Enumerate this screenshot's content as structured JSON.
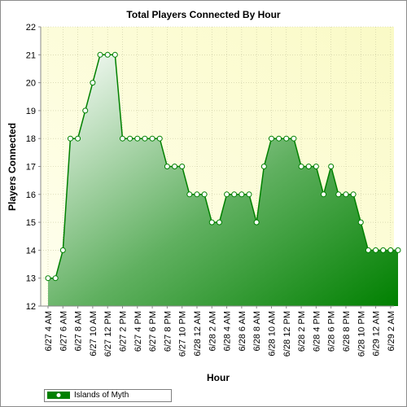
{
  "chart_data": {
    "type": "area",
    "title": "Total Players Connected By Hour",
    "xlabel": "Hour",
    "ylabel": "Players Connected",
    "ylim": [
      12,
      22
    ],
    "yticks": [
      12,
      13,
      14,
      15,
      16,
      17,
      18,
      19,
      20,
      21,
      22
    ],
    "grid": true,
    "legend_position": "bottom-left",
    "x_tick_labels": [
      "6/27 4 AM",
      "6/27 6 AM",
      "6/27 8 AM",
      "6/27 10 AM",
      "6/27 12 PM",
      "6/27 2 PM",
      "6/27 4 PM",
      "6/27 6 PM",
      "6/27 8 PM",
      "6/27 10 PM",
      "6/28 12 AM",
      "6/28 2 AM",
      "6/28 4 AM",
      "6/28 6 AM",
      "6/28 8 AM",
      "6/28 10 AM",
      "6/28 12 PM",
      "6/28 2 PM",
      "6/28 4 PM",
      "6/28 6 PM",
      "6/28 8 PM",
      "6/28 10 PM",
      "6/29 12 AM",
      "6/29 2 AM"
    ],
    "series": [
      {
        "name": "Islands of Myth",
        "color": "#008000",
        "x": [
          "6/27 4 AM",
          "6/27 5 AM",
          "6/27 6 AM",
          "6/27 7 AM",
          "6/27 8 AM",
          "6/27 9 AM",
          "6/27 10 AM",
          "6/27 11 AM",
          "6/27 12 PM",
          "6/27 1 PM",
          "6/27 2 PM",
          "6/27 3 PM",
          "6/27 4 PM",
          "6/27 5 PM",
          "6/27 6 PM",
          "6/27 7 PM",
          "6/27 8 PM",
          "6/27 9 PM",
          "6/27 10 PM",
          "6/27 11 PM",
          "6/28 12 AM",
          "6/28 1 AM",
          "6/28 2 AM",
          "6/28 3 AM",
          "6/28 4 AM",
          "6/28 5 AM",
          "6/28 6 AM",
          "6/28 7 AM",
          "6/28 8 AM",
          "6/28 9 AM",
          "6/28 10 AM",
          "6/28 11 AM",
          "6/28 12 PM",
          "6/28 1 PM",
          "6/28 2 PM",
          "6/28 3 PM",
          "6/28 4 PM",
          "6/28 5 PM",
          "6/28 6 PM",
          "6/28 7 PM",
          "6/28 8 PM",
          "6/28 9 PM",
          "6/28 10 PM",
          "6/28 11 PM",
          "6/29 12 AM",
          "6/29 1 AM",
          "6/29 2 AM",
          "6/29 3 AM"
        ],
        "values": [
          13,
          13,
          14,
          18,
          18,
          19,
          20,
          21,
          21,
          21,
          18,
          18,
          18,
          18,
          18,
          18,
          17,
          17,
          17,
          16,
          16,
          16,
          15,
          15,
          16,
          16,
          16,
          16,
          15,
          17,
          18,
          18,
          18,
          18,
          17,
          17,
          17,
          16,
          17,
          16,
          16,
          16,
          15,
          14,
          14,
          14,
          14,
          14
        ]
      }
    ]
  },
  "colors": {
    "plot_bg_light": "#ffffee",
    "plot_bg_dark": "#fafac8",
    "line": "#008000",
    "area_light": "#ffffff",
    "area_dark": "#008000"
  }
}
